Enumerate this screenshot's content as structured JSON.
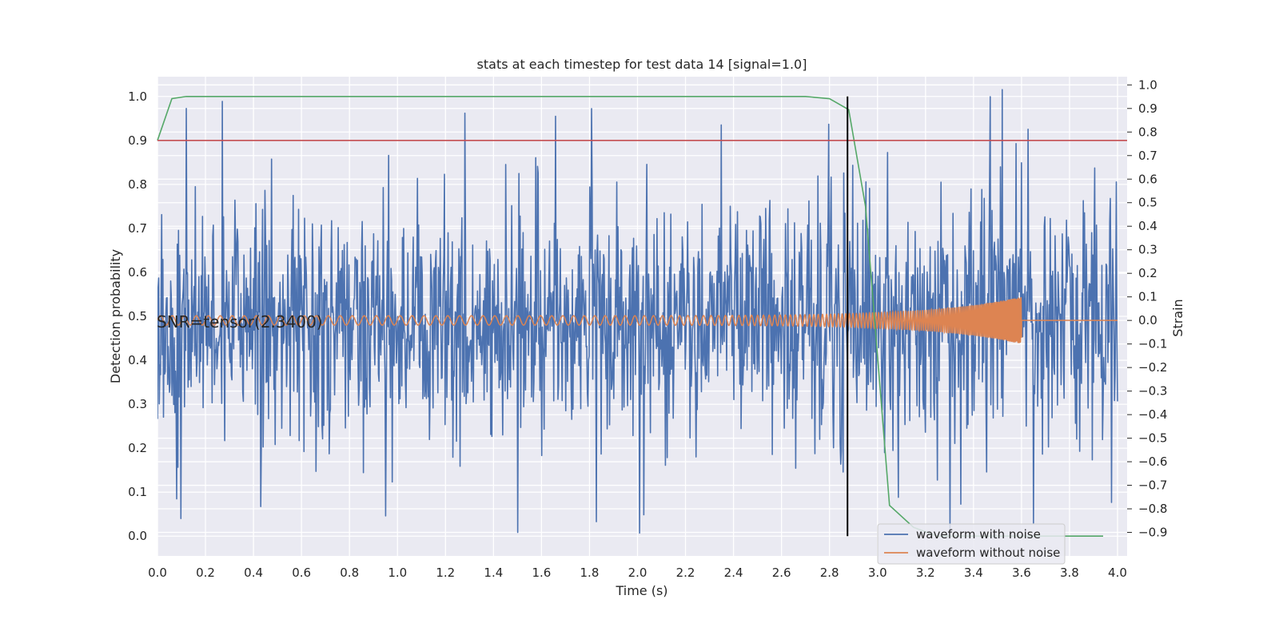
{
  "chart_data": {
    "type": "line",
    "title": "stats at each timestep for test data 14 [signal=1.0]",
    "xlabel": "Time (s)",
    "ylabel_left": "Detection probability",
    "ylabel_right": "Strain",
    "xlim": [
      0.0,
      4.04
    ],
    "ylim_left": [
      -0.045,
      1.045
    ],
    "ylim_right": [
      -1.0,
      1.035
    ],
    "grid": true,
    "x_ticks": [
      "0.0",
      "0.2",
      "0.4",
      "0.6",
      "0.8",
      "1.0",
      "1.2",
      "1.4",
      "1.6",
      "1.8",
      "2.0",
      "2.2",
      "2.4",
      "2.6",
      "2.8",
      "3.0",
      "3.2",
      "3.4",
      "3.6",
      "3.8",
      "4.0"
    ],
    "y_ticks_left": [
      "0.0",
      "0.1",
      "0.2",
      "0.3",
      "0.4",
      "0.5",
      "0.6",
      "0.7",
      "0.8",
      "0.9",
      "1.0"
    ],
    "y_ticks_right": [
      "1.0",
      "0.9",
      "0.8",
      "0.7",
      "0.6",
      "0.5",
      "0.4",
      "0.3",
      "0.2",
      "0.1",
      "0.0",
      "−0.1",
      "−0.2",
      "−0.3",
      "−0.4",
      "−0.5",
      "−0.6",
      "−0.7",
      "−0.8",
      "−0.9"
    ],
    "annotation": "SNR=tensor(2.3400)",
    "threshold": {
      "value": 0.9,
      "axis": "left",
      "color": "#c44e52"
    },
    "event_marker": {
      "x": 2.875,
      "y_range": [
        0.0,
        1.0
      ],
      "color": "#000000"
    },
    "series": [
      {
        "name": "waveform with noise",
        "axis": "right",
        "color": "#4c72b0",
        "x_range": [
          0.0,
          4.0
        ],
        "amplitude_std": 0.26,
        "peaks": [
          {
            "x": 0.12,
            "y": 0.9
          },
          {
            "x": 0.27,
            "y": 0.93
          },
          {
            "x": 1.28,
            "y": 0.88
          },
          {
            "x": 2.35,
            "y": 0.83
          },
          {
            "x": 3.47,
            "y": 0.95
          },
          {
            "x": 3.52,
            "y": 1.0
          },
          {
            "x": 1.5,
            "y": -0.9
          },
          {
            "x": 0.95,
            "y": -0.83
          },
          {
            "x": 3.65,
            "y": -0.86
          }
        ]
      },
      {
        "name": "waveform without noise",
        "axis": "right",
        "color": "#dd8452",
        "x_range": [
          0.0,
          4.0
        ],
        "chirp": {
          "merger_time": 3.6,
          "start_amplitude": 0.02,
          "end_amplitude": 0.1,
          "start_frequency_hz": 20,
          "end_frequency_hz": 200
        }
      },
      {
        "name": "",
        "axis": "left",
        "color": "#55a868",
        "x": [
          0.0,
          0.06,
          0.12,
          0.2,
          2.6,
          2.7,
          2.8,
          2.88,
          2.95,
          3.05,
          3.15,
          3.25,
          3.94
        ],
        "y": [
          0.9,
          0.995,
          1.0,
          1.0,
          1.0,
          1.0,
          0.995,
          0.97,
          0.75,
          0.07,
          0.02,
          0.0,
          0.0
        ]
      }
    ],
    "legend": {
      "placement": "lower-right",
      "entries": [
        "waveform with noise",
        "waveform without noise"
      ]
    }
  }
}
